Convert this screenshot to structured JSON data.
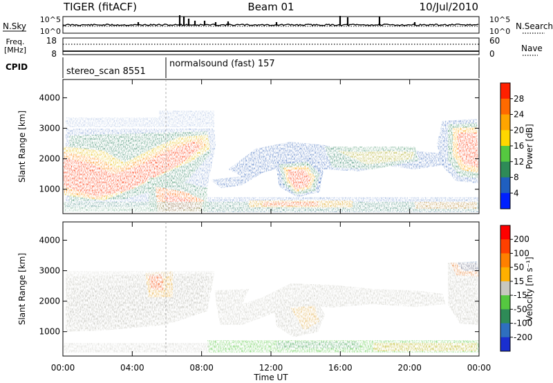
{
  "header": {
    "title_left": "TIGER (fitACF)",
    "title_center": "Beam 01",
    "title_right": "10/Jul/2010"
  },
  "strips": {
    "nsky_label": "N.Sky",
    "nsearch_label": "N.Search",
    "nsky_top": "10^5",
    "nsky_bottom": "10^0",
    "nsearch_top": "10^5",
    "nsearch_bottom": "10^0",
    "freq_label": "Freq.",
    "freq_unit": "[MHz]",
    "freq_top": "18",
    "freq_bottom": "8",
    "nave_label": "Nave",
    "nave_top": "60",
    "nave_bottom": "0",
    "cpid_label": "CPID",
    "cpid_entries": [
      "stereo_scan 8551",
      "normalsound (fast) 157"
    ]
  },
  "chart_data": [
    {
      "type": "heatmap",
      "name": "power",
      "ylabel": "Slant Range [km]",
      "xlabel": "Time UT",
      "x_ticks": [
        "00:00",
        "04:00",
        "08:00",
        "12:00",
        "16:00",
        "20:00",
        "00:00"
      ],
      "y_ticks": [
        1000,
        2000,
        3000,
        4000
      ],
      "ylim": [
        200,
        4600
      ],
      "xlim_hours": [
        0,
        24
      ],
      "colorbar": {
        "label": "Power [dB]",
        "ticks": [
          "4",
          "8",
          "12",
          "16",
          "20",
          "24",
          "28"
        ],
        "colors": [
          "#0020ff",
          "#1f5fbf",
          "#2e8b57",
          "#55c840",
          "#ffd700",
          "#ffa500",
          "#ff6a00",
          "#ff2000"
        ]
      }
    },
    {
      "type": "heatmap",
      "name": "velocity",
      "ylabel": "Slant Range [km]",
      "xlabel": "Time UT",
      "x_ticks": [
        "00:00",
        "04:00",
        "08:00",
        "12:00",
        "16:00",
        "20:00",
        "00:00"
      ],
      "y_ticks": [
        1000,
        2000,
        3000,
        4000
      ],
      "ylim": [
        200,
        4600
      ],
      "xlim_hours": [
        0,
        24
      ],
      "colorbar": {
        "label": "Velocity [m s⁻¹]",
        "ticks": [
          "200",
          "100",
          "50",
          "15",
          "-15",
          "-50",
          "-100",
          "-200"
        ],
        "colors": [
          "#1a2fd0",
          "#2e6fbf",
          "#2e8b57",
          "#55c840",
          "#c8c8c0",
          "#ffb000",
          "#ff8000",
          "#ff4000",
          "#ff0000"
        ]
      }
    }
  ]
}
